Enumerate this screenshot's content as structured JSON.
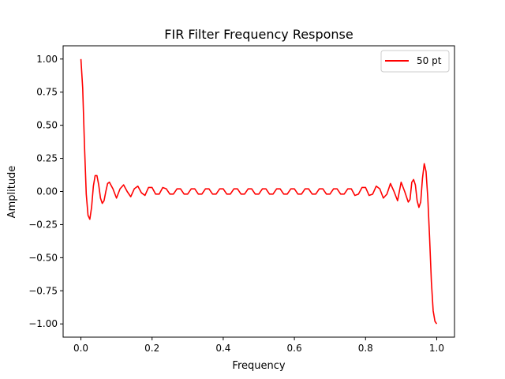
{
  "chart_data": {
    "type": "line",
    "title": "FIR Filter Frequency Response",
    "xlabel": "Frequency",
    "ylabel": "Amplitude",
    "xlim": [
      -0.05,
      1.05
    ],
    "ylim": [
      -1.1,
      1.1
    ],
    "xticks": [
      0.0,
      0.2,
      0.4,
      0.6,
      0.8,
      1.0
    ],
    "xtick_labels": [
      "0.0",
      "0.2",
      "0.4",
      "0.6",
      "0.8",
      "1.0"
    ],
    "yticks": [
      1.0,
      0.75,
      0.5,
      0.25,
      0.0,
      -0.25,
      -0.5,
      -0.75,
      -1.0
    ],
    "ytick_labels": [
      "1.00",
      "0.75",
      "0.50",
      "0.25",
      "0.00",
      "−0.25",
      "−0.50",
      "−0.75",
      "−1.00"
    ],
    "grid": false,
    "legend_position": "top-right",
    "series": [
      {
        "name": "50 pt",
        "color": "#ff0000",
        "x": [
          0.0,
          0.005,
          0.01,
          0.015,
          0.02,
          0.025,
          0.03,
          0.035,
          0.04,
          0.045,
          0.05,
          0.055,
          0.06,
          0.065,
          0.07,
          0.075,
          0.08,
          0.09,
          0.1,
          0.11,
          0.12,
          0.13,
          0.14,
          0.15,
          0.16,
          0.17,
          0.18,
          0.19,
          0.2,
          0.21,
          0.22,
          0.23,
          0.24,
          0.25,
          0.26,
          0.27,
          0.28,
          0.29,
          0.3,
          0.31,
          0.32,
          0.33,
          0.34,
          0.35,
          0.36,
          0.37,
          0.38,
          0.39,
          0.4,
          0.41,
          0.42,
          0.43,
          0.44,
          0.45,
          0.46,
          0.47,
          0.48,
          0.49,
          0.5,
          0.51,
          0.52,
          0.53,
          0.54,
          0.55,
          0.56,
          0.57,
          0.58,
          0.59,
          0.6,
          0.61,
          0.62,
          0.63,
          0.64,
          0.65,
          0.66,
          0.67,
          0.68,
          0.69,
          0.7,
          0.71,
          0.72,
          0.73,
          0.74,
          0.75,
          0.76,
          0.77,
          0.78,
          0.79,
          0.8,
          0.81,
          0.82,
          0.83,
          0.84,
          0.85,
          0.86,
          0.87,
          0.88,
          0.89,
          0.9,
          0.91,
          0.92,
          0.925,
          0.93,
          0.935,
          0.94,
          0.945,
          0.95,
          0.955,
          0.96,
          0.965,
          0.97,
          0.975,
          0.98,
          0.985,
          0.99,
          0.995,
          1.0
        ],
        "y": [
          1.0,
          0.78,
          0.35,
          -0.02,
          -0.18,
          -0.21,
          -0.12,
          0.04,
          0.12,
          0.12,
          0.05,
          -0.05,
          -0.09,
          -0.07,
          0.0,
          0.06,
          0.07,
          0.02,
          -0.05,
          0.02,
          0.05,
          0.0,
          -0.04,
          0.02,
          0.04,
          -0.01,
          -0.03,
          0.03,
          0.03,
          -0.02,
          -0.02,
          0.03,
          0.02,
          -0.02,
          -0.02,
          0.02,
          0.02,
          -0.02,
          -0.02,
          0.02,
          0.02,
          -0.02,
          -0.02,
          0.02,
          0.02,
          -0.02,
          -0.02,
          0.02,
          0.02,
          -0.02,
          -0.02,
          0.02,
          0.02,
          -0.02,
          -0.02,
          0.02,
          0.02,
          -0.02,
          -0.02,
          0.02,
          0.02,
          -0.02,
          -0.02,
          0.02,
          0.02,
          -0.02,
          -0.02,
          0.02,
          0.02,
          -0.02,
          -0.02,
          0.02,
          0.02,
          -0.02,
          -0.02,
          0.02,
          0.02,
          -0.02,
          -0.02,
          0.02,
          0.02,
          -0.02,
          -0.02,
          0.02,
          0.02,
          -0.03,
          -0.02,
          0.03,
          0.03,
          -0.03,
          -0.02,
          0.04,
          0.02,
          -0.05,
          -0.02,
          0.06,
          0.0,
          -0.07,
          0.07,
          0.0,
          -0.08,
          -0.06,
          0.07,
          0.09,
          0.05,
          -0.07,
          -0.12,
          -0.08,
          0.1,
          0.21,
          0.15,
          -0.05,
          -0.35,
          -0.68,
          -0.9,
          -0.98,
          -1.0
        ]
      }
    ]
  }
}
